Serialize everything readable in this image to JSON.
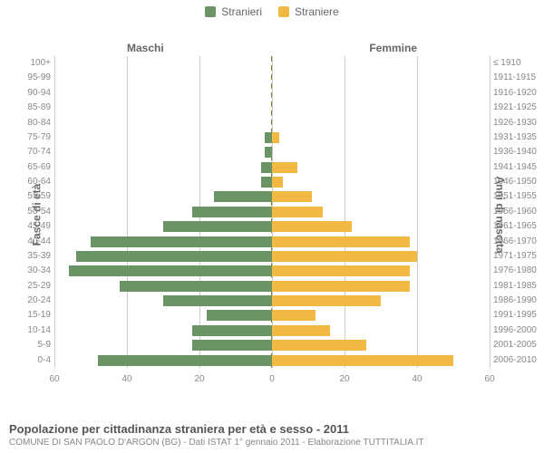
{
  "legend": {
    "male_label": "Stranieri",
    "female_label": "Straniere",
    "male_color": "#6b9466",
    "female_color": "#f2b942"
  },
  "titles": {
    "left_col": "Maschi",
    "right_col": "Femmine",
    "y_left": "Fasce di età",
    "y_right": "Anni di nascita"
  },
  "chart": {
    "type": "population-pyramid",
    "x_max": 60,
    "x_ticks": [
      60,
      40,
      20,
      0,
      20,
      40,
      60
    ],
    "grid_color": "#cccccc",
    "center_line_color": "#8a7a2a",
    "background_color": "#ffffff",
    "bar_colors": {
      "male": "#6b9466",
      "female": "#f2b942"
    },
    "label_fontsize": 10,
    "label_color": "#888888",
    "rows": [
      {
        "age": "100+",
        "birth": "≤ 1910",
        "m": 0,
        "f": 0
      },
      {
        "age": "95-99",
        "birth": "1911-1915",
        "m": 0,
        "f": 0
      },
      {
        "age": "90-94",
        "birth": "1916-1920",
        "m": 0,
        "f": 0
      },
      {
        "age": "85-89",
        "birth": "1921-1925",
        "m": 0,
        "f": 0
      },
      {
        "age": "80-84",
        "birth": "1926-1930",
        "m": 0,
        "f": 0
      },
      {
        "age": "75-79",
        "birth": "1931-1935",
        "m": 2,
        "f": 2
      },
      {
        "age": "70-74",
        "birth": "1936-1940",
        "m": 2,
        "f": 0
      },
      {
        "age": "65-69",
        "birth": "1941-1945",
        "m": 3,
        "f": 7
      },
      {
        "age": "60-64",
        "birth": "1946-1950",
        "m": 3,
        "f": 3
      },
      {
        "age": "55-59",
        "birth": "1951-1955",
        "m": 16,
        "f": 11
      },
      {
        "age": "50-54",
        "birth": "1956-1960",
        "m": 22,
        "f": 14
      },
      {
        "age": "45-49",
        "birth": "1961-1965",
        "m": 30,
        "f": 22
      },
      {
        "age": "40-44",
        "birth": "1966-1970",
        "m": 50,
        "f": 38
      },
      {
        "age": "35-39",
        "birth": "1971-1975",
        "m": 54,
        "f": 40
      },
      {
        "age": "30-34",
        "birth": "1976-1980",
        "m": 56,
        "f": 38
      },
      {
        "age": "25-29",
        "birth": "1981-1985",
        "m": 42,
        "f": 38
      },
      {
        "age": "20-24",
        "birth": "1986-1990",
        "m": 30,
        "f": 30
      },
      {
        "age": "15-19",
        "birth": "1991-1995",
        "m": 18,
        "f": 12
      },
      {
        "age": "10-14",
        "birth": "1996-2000",
        "m": 22,
        "f": 16
      },
      {
        "age": "5-9",
        "birth": "2001-2005",
        "m": 22,
        "f": 26
      },
      {
        "age": "0-4",
        "birth": "2006-2010",
        "m": 48,
        "f": 50
      }
    ]
  },
  "footer": {
    "title": "Popolazione per cittadinanza straniera per età e sesso - 2011",
    "subtitle": "COMUNE DI SAN PAOLO D'ARGON (BG) - Dati ISTAT 1° gennaio 2011 - Elaborazione TUTTITALIA.IT"
  }
}
